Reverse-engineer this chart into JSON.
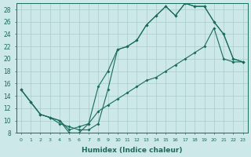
{
  "xlabel": "Humidex (Indice chaleur)",
  "bg_color": "#cce8e8",
  "line_color": "#1a6b5e",
  "grid_color": "#aacccc",
  "xlim": [
    -0.5,
    23.5
  ],
  "ylim": [
    8,
    29
  ],
  "xticks": [
    0,
    1,
    2,
    3,
    4,
    5,
    6,
    7,
    8,
    9,
    10,
    11,
    12,
    13,
    14,
    15,
    16,
    17,
    18,
    19,
    20,
    21,
    22,
    23
  ],
  "yticks": [
    8,
    10,
    12,
    14,
    16,
    18,
    20,
    22,
    24,
    26,
    28
  ],
  "curve_upper_x": [
    0,
    1,
    2,
    3,
    4,
    5,
    6,
    7,
    8,
    9,
    10,
    11,
    12,
    13,
    14,
    15,
    16,
    17,
    18,
    19,
    20,
    21,
    22,
    23
  ],
  "curve_upper_y": [
    15,
    13,
    11,
    10.5,
    10,
    8,
    8,
    9.5,
    15.5,
    18,
    21.5,
    22,
    23,
    25.5,
    27,
    28.5,
    27,
    29,
    28.5,
    28.5,
    26,
    24,
    20,
    19.5
  ],
  "curve_mid_x": [
    0,
    1,
    2,
    3,
    4,
    5,
    6,
    7,
    8,
    9,
    10,
    11,
    12,
    13,
    14,
    15,
    16,
    17,
    18,
    19,
    20,
    21,
    22,
    23
  ],
  "curve_mid_y": [
    15,
    13,
    11,
    10.5,
    9.5,
    9,
    8.5,
    8.5,
    9.5,
    15,
    21.5,
    22,
    23,
    25.5,
    27,
    28.5,
    27,
    29,
    28.5,
    28.5,
    26,
    24,
    20,
    19.5
  ],
  "curve_lower_x": [
    0,
    1,
    2,
    3,
    4,
    5,
    6,
    7,
    8,
    9,
    10,
    11,
    12,
    13,
    14,
    15,
    16,
    17,
    18,
    19,
    20,
    21,
    22,
    23
  ],
  "curve_lower_y": [
    15,
    13,
    11,
    10.5,
    10,
    8.5,
    9,
    9.5,
    11.5,
    12.5,
    13.5,
    14.5,
    15.5,
    16.5,
    17,
    18,
    19,
    20,
    21,
    22,
    25,
    20,
    19.5,
    19.5
  ]
}
